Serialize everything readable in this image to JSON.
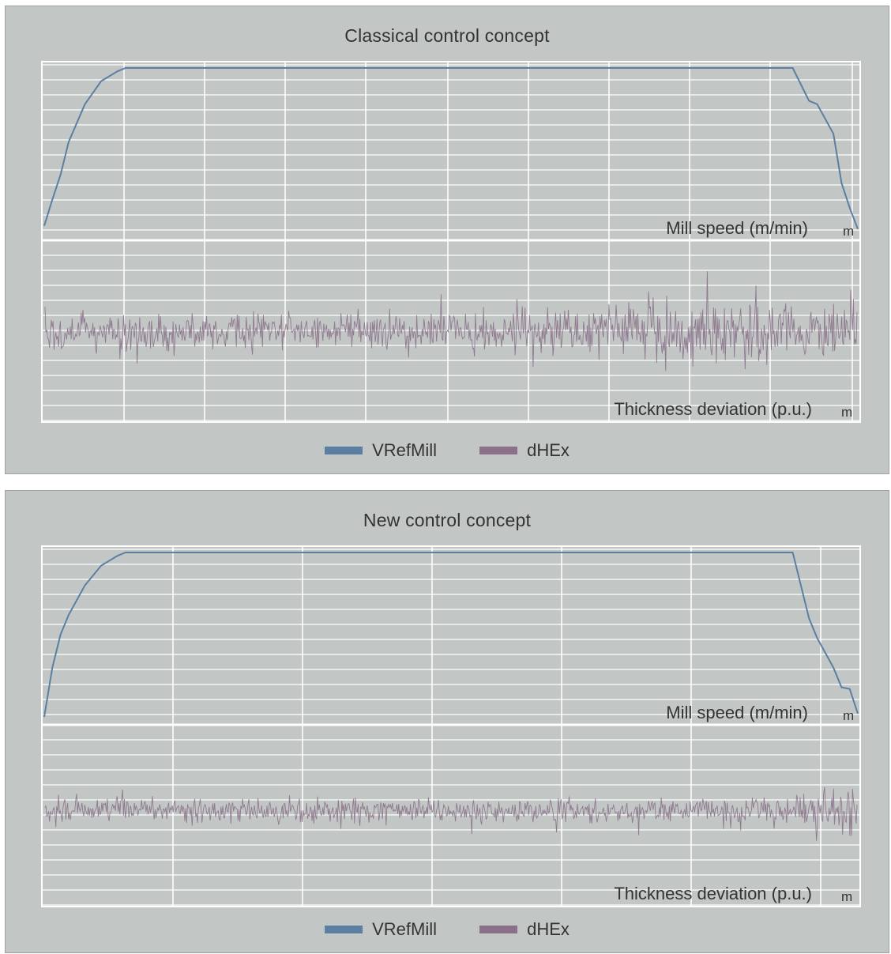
{
  "colors": {
    "panel_bg": "#c2c7c5",
    "grid": "#ffffff",
    "speed_line": "#5b7fa3",
    "thickness_line": "#8a7189"
  },
  "chart_data": [
    {
      "type": "line",
      "title": "Classical control concept",
      "grid": true,
      "legend_position": "bottom-center",
      "legend": [
        "VRefMill",
        "dHEx"
      ],
      "top_plot": {
        "ylabel": "Mill speed (m/min)",
        "xunit": "m",
        "series_name": "VRefMill",
        "x": [
          0,
          0.01,
          0.02,
          0.03,
          0.05,
          0.07,
          0.09,
          0.1,
          0.92,
          0.93,
          0.94,
          0.95,
          0.97,
          0.98,
          0.99,
          1.0
        ],
        "y": [
          0.04,
          0.2,
          0.35,
          0.55,
          0.78,
          0.92,
          0.98,
          1.0,
          1.0,
          0.9,
          0.8,
          0.78,
          0.6,
          0.3,
          0.15,
          0.02
        ]
      },
      "bottom_plot": {
        "ylabel": "Thickness deviation (p.u.)",
        "xunit": "m",
        "series_name": "dHEx",
        "noise_amplitude": [
          [
            0.0,
            0.45
          ],
          [
            0.15,
            0.32
          ],
          [
            0.5,
            0.32
          ],
          [
            0.7,
            0.42
          ],
          [
            0.85,
            0.55
          ],
          [
            0.95,
            0.4
          ],
          [
            1.0,
            0.6
          ]
        ]
      }
    },
    {
      "type": "line",
      "title": "New control concept",
      "grid": true,
      "legend_position": "bottom-center",
      "legend": [
        "VRefMill",
        "dHEx"
      ],
      "top_plot": {
        "ylabel": "Mill speed (m/min)",
        "xunit": "m",
        "series_name": "VRefMill",
        "x": [
          0,
          0.01,
          0.02,
          0.03,
          0.05,
          0.07,
          0.09,
          0.1,
          0.92,
          0.94,
          0.95,
          0.97,
          0.98,
          0.99,
          1.0
        ],
        "y": [
          0.0,
          0.3,
          0.5,
          0.62,
          0.8,
          0.92,
          0.98,
          1.0,
          1.0,
          0.6,
          0.48,
          0.3,
          0.18,
          0.17,
          0.02
        ]
      },
      "bottom_plot": {
        "ylabel": "Thickness deviation (p.u.)",
        "xunit": "m",
        "series_name": "dHEx",
        "noise_amplitude": [
          [
            0.0,
            0.3
          ],
          [
            0.05,
            0.2
          ],
          [
            0.9,
            0.18
          ],
          [
            0.96,
            0.28
          ],
          [
            1.0,
            0.5
          ]
        ]
      }
    }
  ]
}
